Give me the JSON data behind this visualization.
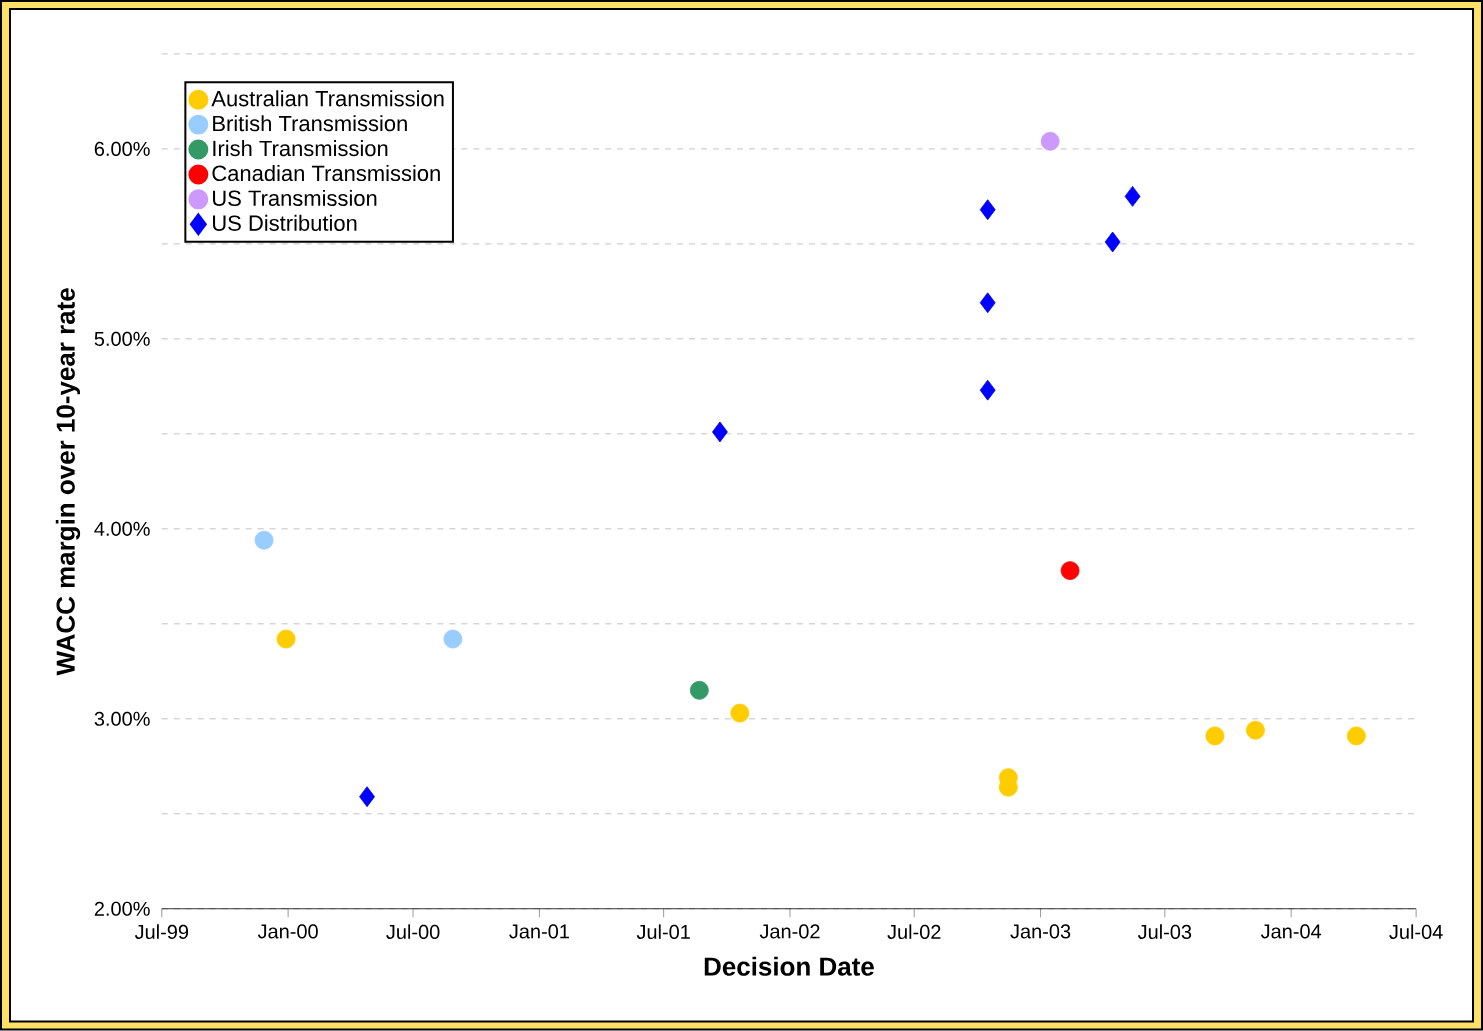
{
  "chart_data": {
    "type": "scatter",
    "xlabel": "Decision Date",
    "ylabel": "WACC margin over 10-year rate",
    "xlim": [
      "1999-07",
      "2004-07"
    ],
    "xticks": [
      {
        "value": "1999-07",
        "label": "Jul-99"
      },
      {
        "value": "2000-01",
        "label": "Jan-00"
      },
      {
        "value": "2000-07",
        "label": "Jul-00"
      },
      {
        "value": "2001-01",
        "label": "Jan-01"
      },
      {
        "value": "2001-07",
        "label": "Jul-01"
      },
      {
        "value": "2002-01",
        "label": "Jan-02"
      },
      {
        "value": "2002-07",
        "label": "Jul-02"
      },
      {
        "value": "2003-01",
        "label": "Jan-03"
      },
      {
        "value": "2003-07",
        "label": "Jul-03"
      },
      {
        "value": "2004-01",
        "label": "Jan-04"
      },
      {
        "value": "2004-07",
        "label": "Jul-04"
      }
    ],
    "ylim": [
      2,
      6.5
    ],
    "yticks": [
      {
        "value": 2,
        "label": "2.00%"
      },
      {
        "value": 2.5,
        "label": null
      },
      {
        "value": 3,
        "label": "3.00%"
      },
      {
        "value": 3.5,
        "label": null
      },
      {
        "value": 4,
        "label": "4.00%"
      },
      {
        "value": 4.5,
        "label": null
      },
      {
        "value": 5,
        "label": "5.00%"
      },
      {
        "value": 5.5,
        "label": null
      },
      {
        "value": 6,
        "label": "6.00%"
      },
      {
        "value": 6.5,
        "label": null
      }
    ],
    "grid": "y",
    "legend": "top left",
    "series": [
      {
        "name": "Australian Transmission",
        "color": "#ffcc00",
        "marker": "circle",
        "x": [
          "1999-12-29",
          "2001-10-20",
          "2002-11-15",
          "2002-11-15",
          "2003-09-12",
          "2003-11-10",
          "2004-04-05"
        ],
        "values": [
          3.42,
          3.03,
          2.69,
          2.64,
          2.91,
          2.94,
          2.91
        ]
      },
      {
        "name": "British Transmission",
        "color": "#99ccff",
        "marker": "circle",
        "x": [
          "1999-11-27",
          "2000-08-28"
        ],
        "values": [
          3.94,
          3.42
        ]
      },
      {
        "name": "Irish Transmission",
        "color": "#339966",
        "marker": "circle",
        "x": [
          "2001-08-22"
        ],
        "values": [
          3.15
        ]
      },
      {
        "name": "Canadian Transmission",
        "color": "#ff0000",
        "marker": "circle",
        "x": [
          "2003-02-13"
        ],
        "values": [
          3.78
        ]
      },
      {
        "name": "US Transmission",
        "color": "#cc99ff",
        "marker": "circle",
        "x": [
          "2003-01-15"
        ],
        "values": [
          6.04
        ]
      },
      {
        "name": "US Distribution",
        "color": "#0000ff",
        "marker": "diamond",
        "x": [
          "2000-04-25",
          "2001-09-21",
          "2002-10-16",
          "2002-10-16",
          "2002-10-16",
          "2003-04-16",
          "2003-05-15"
        ],
        "values": [
          2.59,
          4.51,
          5.68,
          5.19,
          4.73,
          5.51,
          5.75
        ]
      }
    ]
  }
}
